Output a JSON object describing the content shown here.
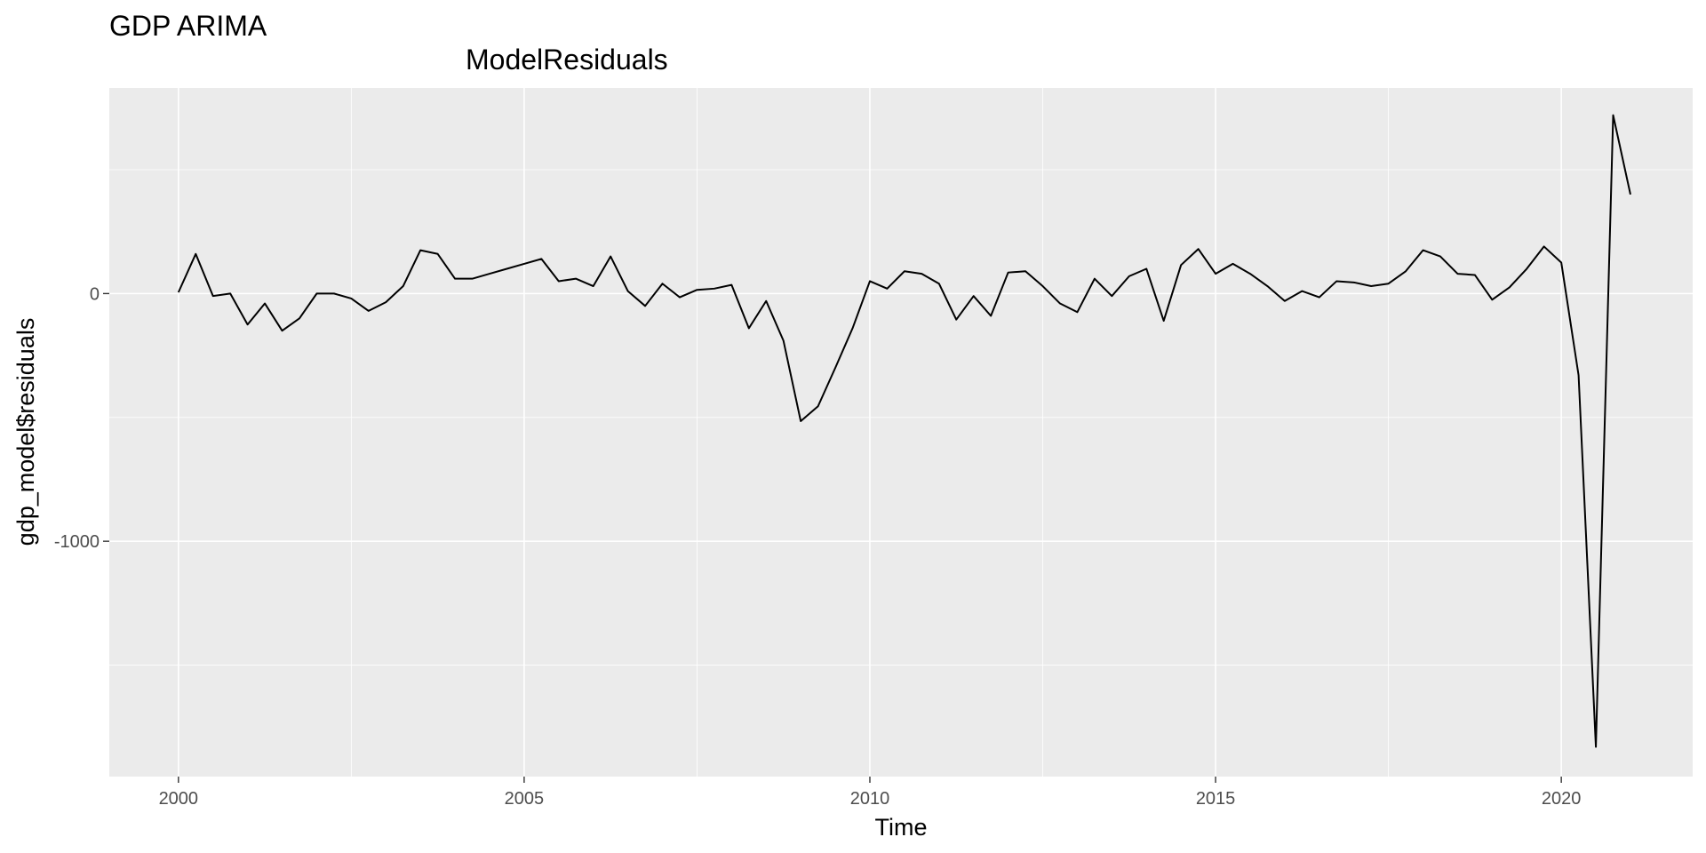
{
  "chart_data": {
    "type": "line",
    "title": "GDP ARIMA",
    "subtitle": "ModelResiduals",
    "xlabel": "Time",
    "ylabel": "gdp_model$residuals",
    "xlim": [
      1999.0,
      2021.9
    ],
    "ylim": [
      -1950,
      830
    ],
    "x_major_ticks": [
      2000,
      2005,
      2010,
      2015,
      2020
    ],
    "x_tick_labels": [
      "2000",
      "2005",
      "2010",
      "2015",
      "2020"
    ],
    "x_minor_ticks": [
      2002.5,
      2007.5,
      2012.5,
      2017.5
    ],
    "y_major_ticks": [
      0,
      -1000
    ],
    "y_tick_labels": [
      "0",
      "-1000"
    ],
    "y_minor_ticks": [
      500,
      -500,
      -1500
    ],
    "grid": true,
    "panel_background": "#ebebeb",
    "line_color": "#000000",
    "series": [
      {
        "x_start": 2000.0,
        "x_step": 0.25,
        "values": [
          5,
          160,
          -10,
          0,
          -125,
          -40,
          -150,
          -100,
          0,
          0,
          -20,
          -70,
          -35,
          30,
          175,
          160,
          60,
          60,
          80,
          100,
          120,
          140,
          50,
          60,
          30,
          150,
          10,
          -50,
          40,
          -15,
          15,
          20,
          35,
          -140,
          -30,
          -190,
          -515,
          -455,
          -300,
          -140,
          50,
          20,
          90,
          80,
          40,
          -105,
          -10,
          -90,
          85,
          90,
          30,
          -40,
          -75,
          60,
          -10,
          70,
          100,
          -110,
          115,
          180,
          80,
          120,
          80,
          30,
          -30,
          10,
          -15,
          50,
          45,
          30,
          40,
          90,
          175,
          150,
          80,
          75,
          -25,
          25,
          100,
          190,
          125,
          -330,
          -1830,
          720,
          400
        ]
      }
    ]
  }
}
